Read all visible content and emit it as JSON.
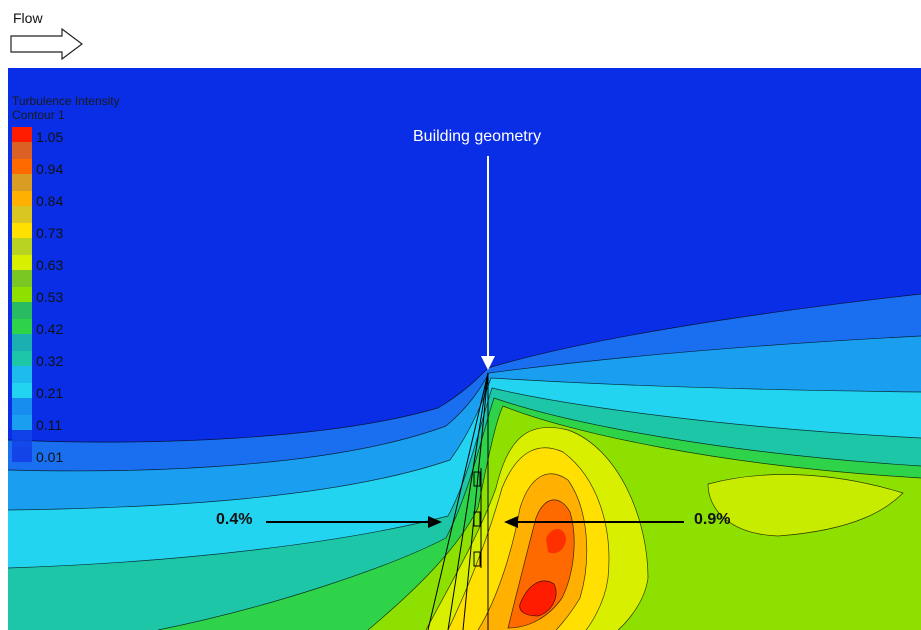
{
  "header": {
    "flow_label": "Flow"
  },
  "legend": {
    "title_line1": "Turbulence Intensity",
    "title_line2": "Contour 1",
    "ticks": [
      "1.05",
      "0.94",
      "0.84",
      "0.73",
      "0.63",
      "0.53",
      "0.42",
      "0.32",
      "0.21",
      "0.11",
      "0.01"
    ],
    "colors": [
      "#ff1c00",
      "#ff6a00",
      "#ffb000",
      "#ffe000",
      "#d8f000",
      "#8ee000",
      "#2ed34a",
      "#1ec6a8",
      "#22d4f0",
      "#1a9ef0",
      "#1244e8"
    ]
  },
  "annotations": {
    "building_label": "Building geometry",
    "left_value": "0.4%",
    "right_value": "0.9%"
  },
  "colors": {
    "background_field": "#0a2ee6",
    "annotation_text": "#ffffff",
    "arrow_color": "#000000"
  }
}
